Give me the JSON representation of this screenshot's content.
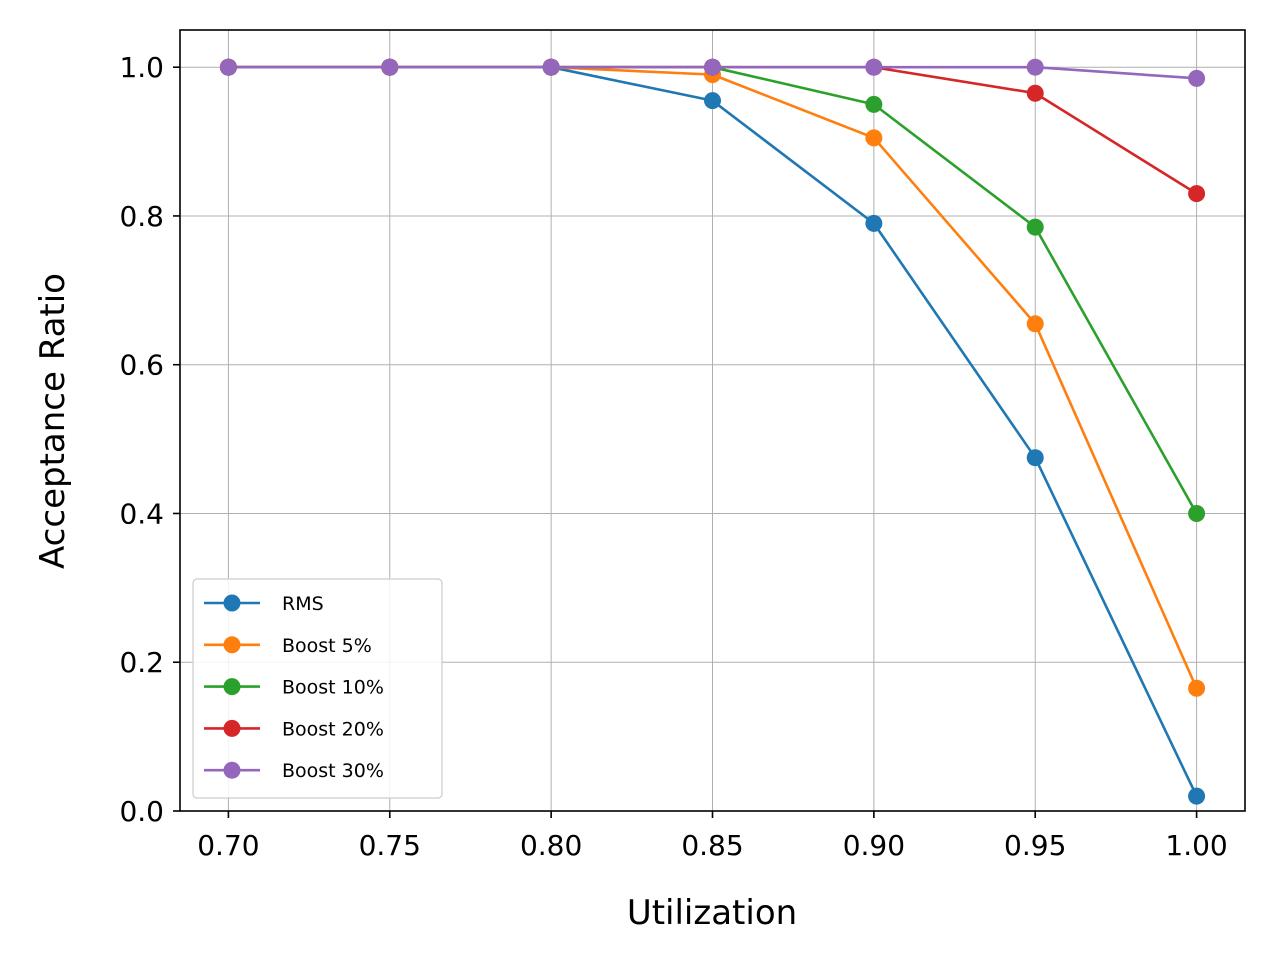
{
  "chart_data": {
    "type": "line",
    "title": "",
    "xlabel": "Utilization",
    "ylabel": "Acceptance Ratio",
    "x": [
      0.7,
      0.75,
      0.8,
      0.85,
      0.9,
      0.95,
      1.0
    ],
    "xticks": [
      "0.70",
      "0.75",
      "0.80",
      "0.85",
      "0.90",
      "0.95",
      "1.00"
    ],
    "yticks": [
      "0.0",
      "0.2",
      "0.4",
      "0.6",
      "0.8",
      "1.0"
    ],
    "xlim": [
      0.685,
      1.015
    ],
    "ylim": [
      0.0,
      1.05
    ],
    "grid": true,
    "legend": "lower-left",
    "series": [
      {
        "name": "RMS",
        "color": "#1f77b4",
        "values": [
          1.0,
          1.0,
          1.0,
          0.955,
          0.79,
          0.475,
          0.02
        ]
      },
      {
        "name": "Boost 5%",
        "color": "#ff7f0e",
        "values": [
          1.0,
          1.0,
          1.0,
          0.99,
          0.905,
          0.655,
          0.165
        ]
      },
      {
        "name": "Boost 10%",
        "color": "#2ca02c",
        "values": [
          1.0,
          1.0,
          1.0,
          1.0,
          0.95,
          0.785,
          0.4
        ]
      },
      {
        "name": "Boost 20%",
        "color": "#d62728",
        "values": [
          1.0,
          1.0,
          1.0,
          1.0,
          1.0,
          0.965,
          0.83
        ]
      },
      {
        "name": "Boost 30%",
        "color": "#9467bd",
        "values": [
          1.0,
          1.0,
          1.0,
          1.0,
          1.0,
          1.0,
          0.985
        ]
      }
    ]
  }
}
